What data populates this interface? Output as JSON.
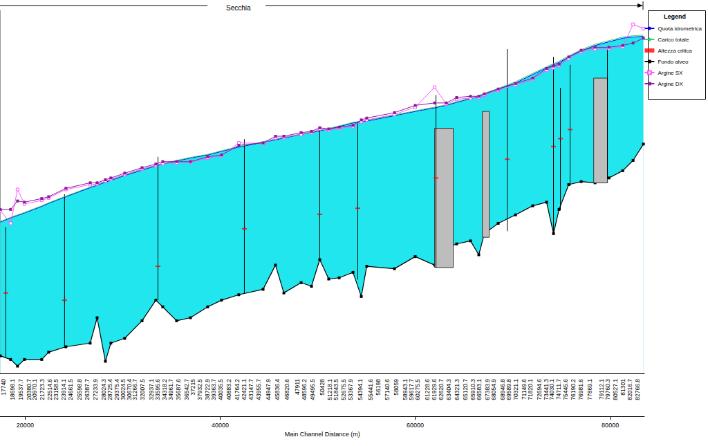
{
  "chart_data": {
    "type": "line",
    "title": "Secchia",
    "x_label": "Main Channel Distance (m)",
    "xlim": [
      17450,
      83500
    ],
    "xticks": [
      20000,
      40000,
      60000,
      80000
    ],
    "ylim": [
      10,
      70
    ],
    "tick_labels": "x",
    "grid": false,
    "legend": "top-right",
    "legend_title": "Legend",
    "stations": [
      17740,
      18698.1,
      19537.7,
      20380.7,
      20970.1,
      21723.3,
      22514.6,
      23158.5,
      23914.1,
      24661.5,
      25598.8,
      26387.7,
      27233.9,
      28024.3,
      28725.4,
      29375.4,
      30024.5,
      30670.4,
      31266.7,
      32007.5,
      32937.1,
      33595.6,
      34318.2,
      34961.7,
      35687.6,
      36542.7,
      37215,
      37932.5,
      38722.9,
      39363.7,
      40035.5,
      40883.2,
      41764.2,
      42421.1,
      43147.7,
      43955.7,
      44947.9,
      45836.4,
      46820.6,
      47911,
      48596.2,
      49495.5,
      50428,
      51218.1,
      51843.5,
      52675.5,
      53367.9,
      54394.1,
      55441.6,
      56198,
      57140.6,
      58059,
      58943.1,
      59617.7,
      60275.5,
      61228.6,
      61929.6,
      62620.7,
      63404.3,
      64321.3,
      65120.7,
      65910.3,
      66583.1,
      67383.9,
      68054.9,
      68946.8,
      69589.8,
      70321.1,
      71149.6,
      71820.1,
      72694.6,
      73441.3,
      74030.1,
      74711.7,
      75445.6,
      76190.2,
      76981.6,
      77869.1,
      79112.1,
      79760.3,
      80527.1,
      81301,
      82016.7,
      82766.8
    ],
    "x": [
      17450,
      18510,
      19220,
      19930,
      21700,
      22410,
      24180,
      26670,
      27380,
      28230,
      28790,
      30210,
      31990,
      33400,
      34110,
      35530,
      36950,
      38720,
      40140,
      41910,
      44400,
      45670,
      46530,
      48300,
      49360,
      50210,
      51130,
      52200,
      53620,
      54470,
      55030,
      57870,
      60000,
      61990,
      63190,
      64250,
      65670,
      66520,
      67090,
      68510,
      70280,
      72050,
      73470,
      74180,
      74750,
      75740,
      77020,
      78440,
      79860,
      81280,
      82340,
      83400
    ],
    "series": [
      {
        "name": "Quota idrometrica",
        "type": "area",
        "color": "#0000ff",
        "values": [
          35.0,
          35.7,
          36.1,
          36.5,
          37.6,
          38.1,
          39.2,
          40.7,
          41.1,
          41.6,
          41.9,
          42.7,
          43.6,
          44.3,
          44.6,
          45.1,
          45.6,
          46.1,
          46.7,
          47.4,
          48.2,
          48.6,
          48.9,
          49.5,
          49.8,
          50.1,
          50.4,
          50.8,
          51.4,
          51.6,
          51.7,
          52.6,
          53.3,
          53.9,
          54.3,
          54.8,
          55.4,
          55.8,
          56.2,
          57.0,
          58.0,
          59.4,
          60.5,
          61.0,
          61.4,
          62.3,
          63.3,
          64.2,
          64.8,
          65.4,
          65.6,
          65.7
        ]
      },
      {
        "name": "Carico totale",
        "type": "line",
        "color": "#33cc66",
        "line_style": "solid",
        "values": [
          35.1,
          35.8,
          36.2,
          36.6,
          37.7,
          38.2,
          39.3,
          40.8,
          41.2,
          41.7,
          42.0,
          42.8,
          43.7,
          44.4,
          44.7,
          45.2,
          45.7,
          46.2,
          46.8,
          47.5,
          48.3,
          48.7,
          49.0,
          49.6,
          49.9,
          50.2,
          50.5,
          50.9,
          51.5,
          51.7,
          51.8,
          52.7,
          53.4,
          54.0,
          54.4,
          54.9,
          55.5,
          55.9,
          56.3,
          57.1,
          58.2,
          59.6,
          60.7,
          61.2,
          61.6,
          62.5,
          63.5,
          64.4,
          65.0,
          65.6,
          65.8,
          65.9
        ]
      },
      {
        "name": "Altezza critica",
        "type": "scatter",
        "color": "#ff0000",
        "marker": "dash",
        "x": [
          18020,
          24040,
          33620,
          42480,
          50210,
          54110,
          62130,
          69430,
          74180,
          74890,
          75880
        ],
        "values": [
          23.3,
          22.1,
          27.7,
          33.9,
          36.3,
          37.3,
          42.3,
          45.4,
          47.5,
          48.8,
          50.3
        ]
      },
      {
        "name": "Fondo alveo",
        "type": "ground",
        "color": "#000000",
        "marker": "square",
        "values": [
          12.9,
          12.3,
          11.2,
          12.3,
          12.3,
          13.5,
          14.4,
          15.0,
          19.2,
          12.0,
          15.0,
          15.8,
          18.7,
          22.1,
          21.0,
          18.7,
          19.2,
          21.0,
          22.1,
          23.0,
          23.9,
          27.9,
          23.3,
          25.0,
          24.4,
          28.8,
          25.6,
          25.8,
          26.7,
          22.7,
          27.7,
          27.3,
          29.3,
          27.9,
          30.8,
          31.4,
          31.9,
          29.6,
          33.1,
          34.8,
          36.2,
          37.7,
          38.3,
          33.1,
          37.1,
          41.2,
          41.7,
          41.5,
          42.3,
          43.5,
          45.2,
          47.9
        ]
      },
      {
        "name": "Argine SX",
        "type": "line",
        "color": "#ff55ff",
        "marker": "open_square",
        "values": [
          36.9,
          34.8,
          40.4,
          38.0,
          38.6,
          39.0,
          40.4,
          41.2,
          41.3,
          41.8,
          42.1,
          42.9,
          43.8,
          44.4,
          44.7,
          44.8,
          44.9,
          45.6,
          46.0,
          48.1,
          48.0,
          48.9,
          49.0,
          49.5,
          49.8,
          50.4,
          50.2,
          50.5,
          50.8,
          51.6,
          51.9,
          52.8,
          54.0,
          57.3,
          54.5,
          55.3,
          55.5,
          55.6,
          56.0,
          56.8,
          57.7,
          58.6,
          60.1,
          60.5,
          60.9,
          62.0,
          63.2,
          63.6,
          63.7,
          64.0,
          67.7,
          67.0
        ]
      },
      {
        "name": "Argine DX",
        "type": "line",
        "color": "#8b1a9b",
        "marker": "square",
        "values": [
          37.1,
          37.1,
          38.5,
          38.3,
          38.9,
          39.2,
          40.6,
          41.5,
          41.5,
          42.0,
          42.3,
          43.1,
          44.0,
          44.6,
          45.0,
          45.0,
          45.0,
          45.8,
          46.1,
          47.7,
          48.1,
          49.2,
          49.2,
          49.8,
          50.0,
          50.6,
          50.4,
          50.7,
          51.0,
          51.9,
          52.2,
          53.1,
          54.3,
          54.7,
          54.7,
          55.6,
          55.8,
          55.8,
          56.2,
          57.0,
          57.9,
          58.8,
          60.4,
          60.8,
          61.1,
          62.3,
          63.4,
          63.9,
          63.9,
          64.2,
          64.6,
          65.4
        ]
      }
    ],
    "structures": [
      {
        "x": 18020,
        "low": 12.6,
        "high": 34.2
      },
      {
        "x": 24040,
        "low": 14.4,
        "high": 39.6
      },
      {
        "x": 33620,
        "low": 22.1,
        "high": 45.8
      },
      {
        "x": 42480,
        "low": 23.2,
        "high": 48.7
      },
      {
        "x": 50210,
        "low": 28.8,
        "high": 50.6
      },
      {
        "x": 54110,
        "low": 25.5,
        "high": 51.6
      },
      {
        "x": 62130,
        "low": 27.5,
        "high": 56.0
      },
      {
        "x": 69430,
        "low": 33.5,
        "high": 63.6
      },
      {
        "x": 74180,
        "low": 33.1,
        "high": 62.3
      },
      {
        "x": 74890,
        "low": 37.0,
        "high": 57.2
      },
      {
        "x": 75880,
        "low": 41.0,
        "high": 61.0
      },
      {
        "x": 79710,
        "low": 42.2,
        "high": 63.6
      }
    ],
    "piers": [
      {
        "x0": 61990,
        "x1": 63900,
        "low": 27.5,
        "high": 50.5
      },
      {
        "x0": 66880,
        "x1": 67590,
        "low": 32.5,
        "high": 53.3
      },
      {
        "x0": 78300,
        "x1": 79710,
        "low": 41.5,
        "high": 58.8
      }
    ]
  }
}
